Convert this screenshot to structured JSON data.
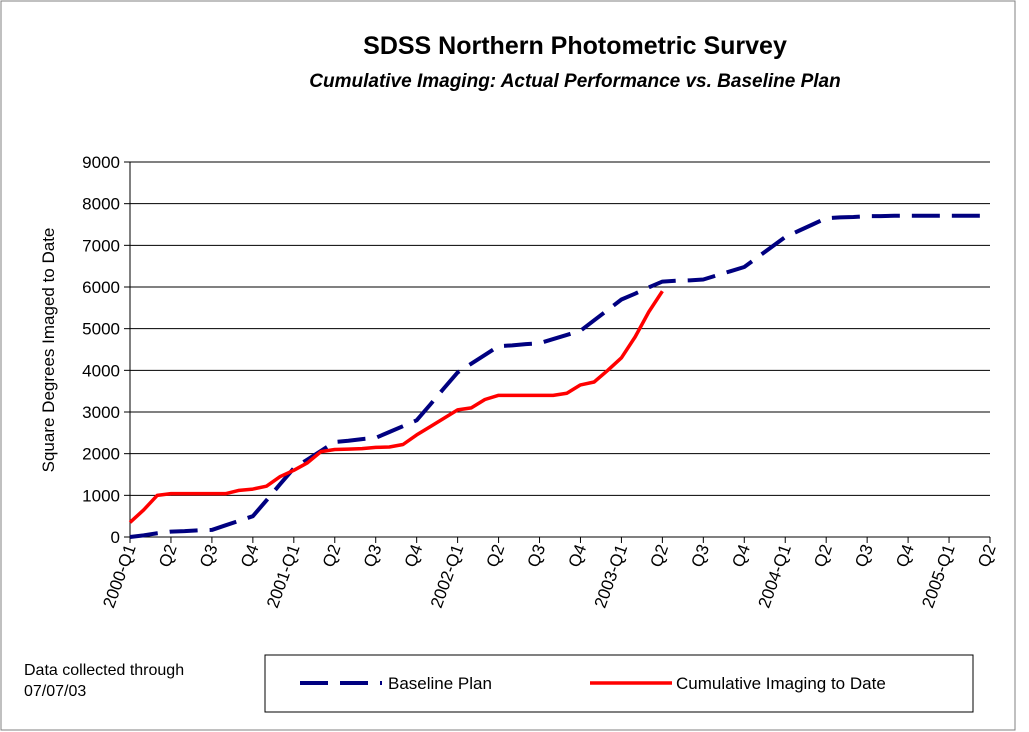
{
  "chart_data": {
    "type": "line",
    "title": "SDSS Northern Photometric Survey",
    "subtitle": "Cumulative Imaging: Actual Performance vs. Baseline Plan",
    "y_label": "Square Degrees Imaged to Date",
    "note": "Data collected through 07/07/03",
    "categories": [
      "2000-Q1",
      null,
      null,
      "Q2",
      null,
      null,
      "Q3",
      null,
      null,
      "Q4",
      null,
      null,
      "2001-Q1",
      null,
      null,
      "Q2",
      null,
      null,
      "Q3",
      null,
      null,
      "Q4",
      null,
      null,
      "2002-Q1",
      null,
      null,
      "Q2",
      null,
      null,
      "Q3",
      null,
      null,
      "Q4",
      null,
      null,
      "2003-Q1",
      null,
      null,
      "Q2",
      null,
      null,
      "Q3",
      null,
      null,
      "Q4",
      null,
      null,
      "2004-Q1",
      null,
      null,
      "Q2",
      null,
      null,
      "Q3",
      null,
      null,
      "Q4",
      null,
      null,
      "2005-Q1",
      null,
      null,
      "Q2"
    ],
    "series": [
      {
        "name": "Baseline Plan",
        "color": "#000080",
        "dashed": true,
        "values": [
          0,
          40,
          90,
          130,
          140,
          160,
          170,
          280,
          390,
          500,
          880,
          1270,
          1650,
          1860,
          2070,
          2280,
          2310,
          2350,
          2380,
          2520,
          2660,
          2800,
          3180,
          3570,
          3950,
          4160,
          4370,
          4580,
          4600,
          4630,
          4650,
          4750,
          4850,
          4950,
          5200,
          5450,
          5700,
          5840,
          5990,
          6130,
          6150,
          6160,
          6180,
          6280,
          6380,
          6480,
          6720,
          6960,
          7200,
          7350,
          7500,
          7650,
          7670,
          7680,
          7700,
          7700,
          7710,
          7710,
          7710,
          7710,
          7710,
          7710,
          7710,
          7710
        ]
      },
      {
        "name": "Cumulative Imaging to Date",
        "color": "#ff0000",
        "dashed": false,
        "values": [
          350,
          650,
          1000,
          1040,
          1040,
          1040,
          1040,
          1040,
          1120,
          1150,
          1220,
          1450,
          1600,
          1780,
          2050,
          2100,
          2110,
          2120,
          2150,
          2160,
          2220,
          2450,
          2650,
          2850,
          3050,
          3100,
          3300,
          3400,
          3400,
          3400,
          3400,
          3400,
          3450,
          3650,
          3720,
          4000,
          4300,
          4800,
          5400,
          5900,
          null,
          null,
          null,
          null,
          null,
          null,
          null,
          null,
          null,
          null,
          null,
          null,
          null,
          null,
          null,
          null,
          null,
          null,
          null,
          null,
          null,
          null,
          null,
          null
        ]
      }
    ],
    "ylim": [
      0,
      9000
    ],
    "yticks": [
      0,
      1000,
      2000,
      3000,
      4000,
      5000,
      6000,
      7000,
      8000,
      9000
    ],
    "grid": true,
    "legend": "bottom"
  }
}
